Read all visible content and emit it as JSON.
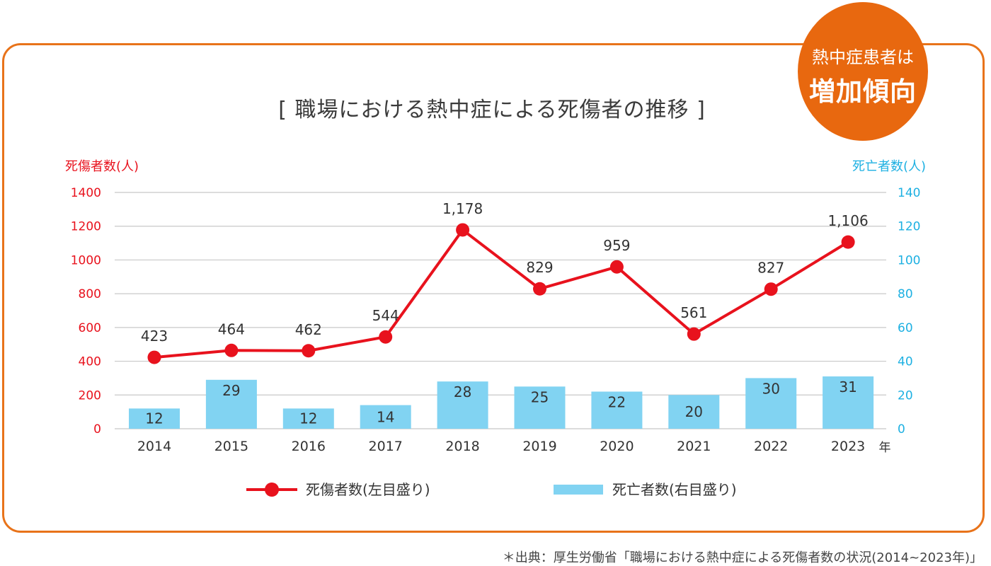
{
  "badge": {
    "line1": "熱中症患者は",
    "line2": "増加傾向"
  },
  "source_note": "＊出典：厚生労働省「職場における熱中症による死傷者数の状況(2014~2023年)」",
  "colors": {
    "line": "#e8121d",
    "bar": "#81d3f2",
    "left_axis": "#e8121d",
    "right_axis": "#1db0e2",
    "frame": "#e8731a",
    "badge": "#e8680f"
  },
  "chart_data": {
    "type": "bar+line",
    "title": "[ 職場における熱中症による死傷者の推移 ]",
    "categories": [
      "2014",
      "2015",
      "2016",
      "2017",
      "2018",
      "2019",
      "2020",
      "2021",
      "2022",
      "2023"
    ],
    "x_unit": "年",
    "left_axis": {
      "label": "死傷者数(人)",
      "min": 0,
      "max": 1400,
      "ticks": [
        "0",
        "200",
        "400",
        "600",
        "800",
        "1000",
        "1200",
        "1400"
      ]
    },
    "right_axis": {
      "label": "死亡者数(人)",
      "min": 0,
      "max": 140,
      "ticks": [
        "0",
        "20",
        "40",
        "60",
        "80",
        "100",
        "120",
        "140"
      ]
    },
    "grid": true,
    "series": [
      {
        "name": "死傷者数(左目盛り)",
        "kind": "line",
        "axis": "left",
        "values": [
          423,
          464,
          462,
          544,
          1178,
          829,
          959,
          561,
          827,
          1106
        ],
        "labels": [
          "423",
          "464",
          "462",
          "544",
          "1,178",
          "829",
          "959",
          "561",
          "827",
          "1,106"
        ]
      },
      {
        "name": "死亡者数(右目盛り)",
        "kind": "bar",
        "axis": "right",
        "values": [
          12,
          29,
          12,
          14,
          28,
          25,
          22,
          20,
          30,
          31
        ],
        "labels": [
          "12",
          "29",
          "12",
          "14",
          "28",
          "25",
          "22",
          "20",
          "30",
          "31"
        ]
      }
    ],
    "legend_position": "bottom"
  }
}
